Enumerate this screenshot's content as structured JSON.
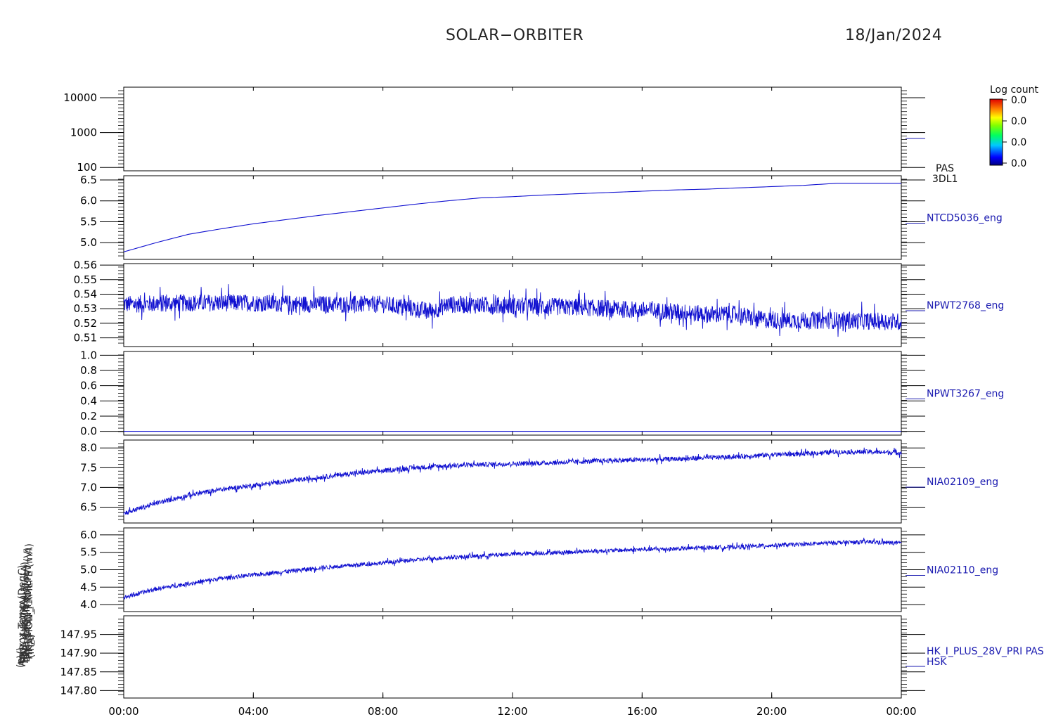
{
  "header": {
    "mission": "SOLAR−ORBITER",
    "date": "18/Jan/2024"
  },
  "colorbar": {
    "title": "Log count",
    "ticks": [
      "0.0",
      "0.0",
      "0.0",
      "0.0"
    ]
  },
  "ylabels": [
    "(eV)",
    "Approx Temp (DegC)",
    "TDS_V_SW (A)",
    "SWA_HK_D5V_5V (A)",
    "LFR_C14_IN_H V",
    "THR_MON_FRMLPW (V)",
    "HK_IMON_FRMLPE (mA)",
    "(mA)"
  ],
  "chart_data": {
    "type": "line",
    "x_tick_labels": [
      "00:00",
      "04:00",
      "08:00",
      "12:00",
      "16:00",
      "20:00",
      "00:00"
    ],
    "xlim_hours": [
      0,
      24
    ],
    "grid": false,
    "line_color": "#1010d0",
    "panels": [
      {
        "name": "PAS 3DL1",
        "label_lines": [
          "PAS",
          "3DL1"
        ],
        "kind": "spectrogram",
        "yscale": "log",
        "ylim": [
          80,
          20000
        ],
        "yticks": [
          100,
          1000,
          10000
        ],
        "ytick_labels": [
          "100",
          "1000",
          "10000"
        ],
        "x": [],
        "y": []
      },
      {
        "name": "NTCD5036_eng",
        "label_lines": [
          "NTCD5036_eng"
        ],
        "ylim": [
          4.6,
          6.6
        ],
        "yticks": [
          5.0,
          5.5,
          6.0,
          6.5
        ],
        "ytick_labels": [
          "5.0",
          "5.5",
          "6.0",
          "6.5"
        ],
        "noise": 0.0,
        "x": [
          0,
          1,
          2,
          3,
          4,
          5,
          6,
          7,
          8,
          9,
          10,
          11,
          12,
          13,
          14,
          15,
          16,
          17,
          18,
          19,
          20,
          21,
          22,
          23,
          24
        ],
        "y": [
          4.78,
          5.0,
          5.2,
          5.33,
          5.45,
          5.55,
          5.65,
          5.74,
          5.83,
          5.92,
          6.0,
          6.07,
          6.1,
          6.14,
          6.17,
          6.2,
          6.23,
          6.26,
          6.28,
          6.31,
          6.34,
          6.37,
          6.42,
          6.42,
          6.42
        ]
      },
      {
        "name": "NPWT2768_eng",
        "label_lines": [
          "NPWT2768_eng"
        ],
        "ylim": [
          0.504,
          0.561
        ],
        "yticks": [
          0.51,
          0.52,
          0.53,
          0.54,
          0.55,
          0.56
        ],
        "ytick_labels": [
          "0.51",
          "0.52",
          "0.53",
          "0.54",
          "0.55",
          "0.56"
        ],
        "noise": 0.006,
        "x": [
          0,
          2,
          4,
          6,
          8,
          9,
          9.5,
          10,
          12,
          14,
          16,
          17,
          18,
          19,
          19.5,
          20,
          22,
          24
        ],
        "y": [
          0.533,
          0.534,
          0.534,
          0.533,
          0.533,
          0.53,
          0.528,
          0.533,
          0.532,
          0.531,
          0.529,
          0.528,
          0.526,
          0.526,
          0.523,
          0.522,
          0.522,
          0.521
        ]
      },
      {
        "name": "NPWT3267_eng",
        "label_lines": [
          "NPWT3267_eng"
        ],
        "ylim": [
          -0.05,
          1.05
        ],
        "yticks": [
          0.0,
          0.2,
          0.4,
          0.6,
          0.8,
          1.0
        ],
        "ytick_labels": [
          "0.0",
          "0.2",
          "0.4",
          "0.6",
          "0.8",
          "1.0"
        ],
        "noise": 0.0,
        "x": [
          0,
          24
        ],
        "y": [
          0.0,
          0.0
        ]
      },
      {
        "name": "NIA02109_eng",
        "label_lines": [
          "NIA02109_eng"
        ],
        "ylim": [
          6.1,
          8.2
        ],
        "yticks": [
          6.5,
          7.0,
          7.5,
          8.0
        ],
        "ytick_labels": [
          "6.5",
          "7.0",
          "7.5",
          "8.0"
        ],
        "noise": 0.06,
        "x": [
          0,
          1,
          2,
          3,
          4,
          5,
          6,
          7,
          8,
          9,
          10,
          11,
          12,
          13,
          14,
          15,
          16,
          17,
          18,
          19,
          20,
          21,
          22,
          23,
          24
        ],
        "y": [
          6.35,
          6.6,
          6.8,
          6.95,
          7.05,
          7.15,
          7.25,
          7.35,
          7.42,
          7.5,
          7.55,
          7.58,
          7.6,
          7.62,
          7.65,
          7.68,
          7.7,
          7.72,
          7.75,
          7.78,
          7.83,
          7.85,
          7.9,
          7.9,
          7.88
        ]
      },
      {
        "name": "NIA02110_eng",
        "label_lines": [
          "NIA02110_eng"
        ],
        "ylim": [
          3.8,
          6.2
        ],
        "yticks": [
          4.0,
          4.5,
          5.0,
          5.5,
          6.0
        ],
        "ytick_labels": [
          "4.0",
          "4.5",
          "5.0",
          "5.5",
          "6.0"
        ],
        "noise": 0.06,
        "x": [
          0,
          1,
          2,
          3,
          4,
          5,
          6,
          7,
          8,
          9,
          10,
          11,
          12,
          13,
          14,
          15,
          16,
          17,
          18,
          19,
          20,
          21,
          22,
          23,
          24
        ],
        "y": [
          4.2,
          4.45,
          4.6,
          4.75,
          4.85,
          4.95,
          5.05,
          5.12,
          5.2,
          5.28,
          5.35,
          5.4,
          5.45,
          5.48,
          5.52,
          5.55,
          5.58,
          5.6,
          5.63,
          5.66,
          5.7,
          5.73,
          5.78,
          5.8,
          5.76
        ]
      },
      {
        "name": "HK_I_PLUS_28V_PRI PAS HSK",
        "label_lines": [
          "HK_I_PLUS_28V_PRI PAS",
          "HSK"
        ],
        "ylim": [
          147.78,
          148.0
        ],
        "yticks": [
          147.8,
          147.85,
          147.9,
          147.95
        ],
        "ytick_labels": [
          "147.80",
          "147.85",
          "147.90",
          "147.95"
        ],
        "noise": 0.0,
        "x": [],
        "y": []
      }
    ]
  }
}
